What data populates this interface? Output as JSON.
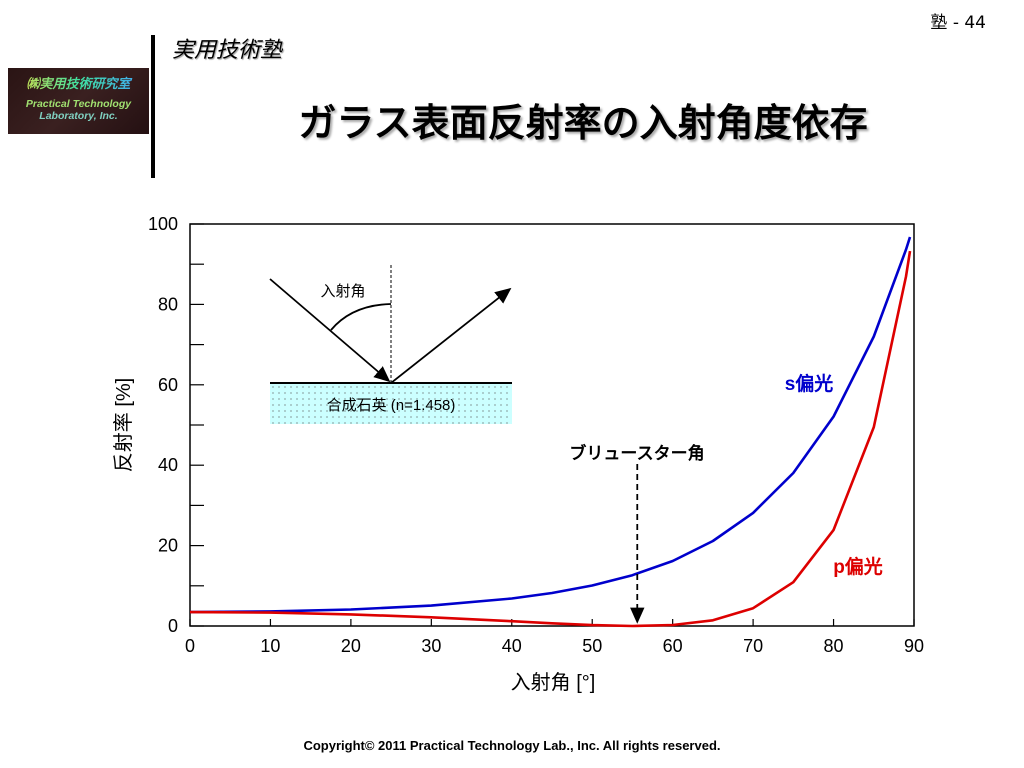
{
  "header": {
    "page_number": "塾 - 44",
    "series_title": "実用技術塾",
    "title": "ガラス表面反射率の入射角度依存"
  },
  "logo": {
    "line1": "㈱実用技術研究室",
    "line2": "Practical Technology",
    "line3": "Laboratory, Inc."
  },
  "footer": {
    "copyright": "Copyright©   2011   Practical Technology Lab., Inc.   All rights reserved."
  },
  "inset": {
    "angle_label": "入射角",
    "material_label": "合成石英 (n=1.458)",
    "fill_color": "#ccffff"
  },
  "annotations": {
    "brewster": "ブリュースター角",
    "brewster_angle": 55.6
  },
  "chart_data": {
    "type": "line",
    "title": "",
    "xlabel": "入射角 [°]",
    "ylabel": "反射率 [%]",
    "xlim": [
      0,
      90
    ],
    "ylim": [
      0,
      100
    ],
    "xticks": [
      "0",
      "10",
      "20",
      "30",
      "40",
      "50",
      "60",
      "70",
      "80",
      "90"
    ],
    "yticks": [
      "0",
      "20",
      "40",
      "60",
      "80",
      "100"
    ],
    "x": [
      0,
      10,
      20,
      30,
      40,
      45,
      50,
      55,
      60,
      65,
      70,
      75,
      80,
      85,
      89,
      89.5
    ],
    "series": [
      {
        "name": "s偏光",
        "color": "#0000cc",
        "values": [
          3.47,
          3.62,
          4.11,
          5.07,
          6.84,
          8.21,
          10.07,
          12.63,
          16.18,
          21.14,
          28.14,
          38.05,
          52.11,
          72.02,
          93.63,
          96.76
        ]
      },
      {
        "name": "p偏光",
        "color": "#dd0000",
        "values": [
          3.47,
          3.33,
          2.89,
          2.16,
          1.19,
          0.67,
          0.23,
          0.0,
          0.24,
          1.43,
          4.43,
          10.89,
          23.9,
          49.49,
          86.95,
          93.25
        ]
      }
    ],
    "grid": false,
    "legend": "inline labels"
  }
}
